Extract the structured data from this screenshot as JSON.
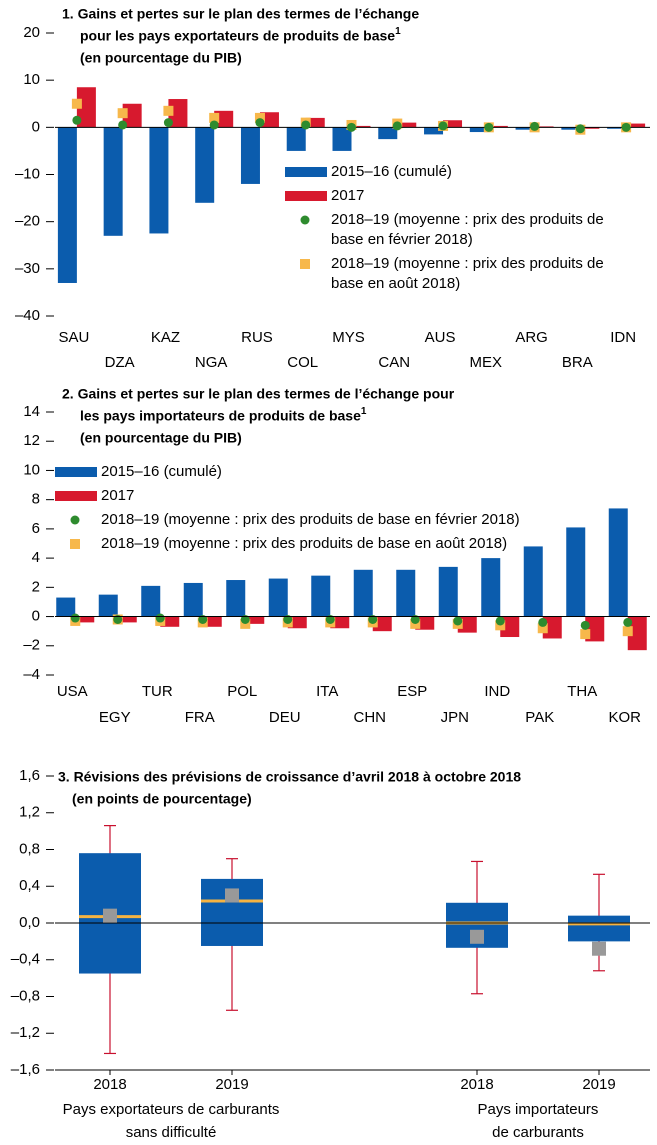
{
  "chart_data": [
    {
      "type": "bar",
      "title": [
        "1. Gains et pertes sur le plan des termes de l’échange",
        "pour les pays exportateurs de produits de base",
        "(en pourcentage du PIB)"
      ],
      "footnote_mark": "1",
      "categories": [
        "SAU",
        "DZA",
        "KAZ",
        "NGA",
        "RUS",
        "COL",
        "MYS",
        "CAN",
        "AUS",
        "MEX",
        "ARG",
        "BRA",
        "IDN"
      ],
      "series": [
        {
          "name": "2015–16 (cumulé)",
          "color": "#0b5cad",
          "marker": "bar",
          "values": [
            -33,
            -23,
            -22.5,
            -16,
            -12,
            -5,
            -5,
            -2.5,
            -1.5,
            -1,
            -0.5,
            -0.5,
            -0.3
          ]
        },
        {
          "name": "2017",
          "color": "#d7192e",
          "marker": "bar",
          "values": [
            8.5,
            5,
            6,
            3.5,
            3.2,
            2,
            0.3,
            1,
            1.5,
            0.3,
            0.2,
            -0.3,
            0.8
          ]
        },
        {
          "name": "2018–19 (moyenne : prix des produits de base en février 2018)",
          "color": "#2e8b2e",
          "marker": "dot",
          "values": [
            1.5,
            0.5,
            1,
            0.5,
            1,
            0.5,
            0,
            0.3,
            0.3,
            0,
            0.2,
            -0.3,
            0
          ]
        },
        {
          "name": "2018–19 (moyenne : prix des produits de base en août 2018)",
          "color": "#f7b84b",
          "marker": "square",
          "values": [
            5,
            3,
            3.5,
            2,
            2,
            1,
            0.5,
            0.8,
            0.3,
            0,
            0,
            -0.5,
            0
          ]
        }
      ],
      "ylim": [
        -40,
        20
      ],
      "yticks": [
        {
          "value": -40,
          "label": "–40"
        },
        {
          "value": -30,
          "label": "–30"
        },
        {
          "value": -20,
          "label": "–20"
        },
        {
          "value": -10,
          "label": "–10"
        },
        0,
        10,
        20
      ]
    },
    {
      "type": "bar",
      "title": [
        "2. Gains et pertes sur le plan des termes de l’échange pour",
        "les pays importateurs de produits de base",
        "(en pourcentage du PIB)"
      ],
      "footnote_mark": "1",
      "categories": [
        "USA",
        "EGY",
        "TUR",
        "FRA",
        "POL",
        "DEU",
        "ITA",
        "CHN",
        "ESP",
        "JPN",
        "IND",
        "PAK",
        "THA",
        "KOR"
      ],
      "series": [
        {
          "name": "2015–16 (cumulé)",
          "color": "#0b5cad",
          "marker": "bar",
          "values": [
            1.3,
            1.5,
            2.1,
            2.3,
            2.5,
            2.6,
            2.8,
            3.2,
            3.2,
            3.4,
            4.0,
            4.8,
            6.1,
            7.4
          ]
        },
        {
          "name": "2017",
          "color": "#d7192e",
          "marker": "bar",
          "values": [
            -0.4,
            -0.4,
            -0.7,
            -0.7,
            -0.5,
            -0.8,
            -0.8,
            -1.0,
            -0.9,
            -1.1,
            -1.4,
            -1.5,
            -1.7,
            -2.3
          ]
        },
        {
          "name": "2018–19 (moyenne : prix des produits de base en février 2018)",
          "color": "#2e8b2e",
          "marker": "dot",
          "values": [
            -0.1,
            -0.2,
            -0.1,
            -0.2,
            -0.2,
            -0.2,
            -0.2,
            -0.2,
            -0.2,
            -0.3,
            -0.3,
            -0.4,
            -0.6,
            -0.4
          ]
        },
        {
          "name": "2018–19 (moyenne : prix des produits de base en août 2018)",
          "color": "#f7b84b",
          "marker": "square",
          "values": [
            -0.3,
            -0.2,
            -0.3,
            -0.4,
            -0.5,
            -0.4,
            -0.4,
            -0.4,
            -0.5,
            -0.5,
            -0.6,
            -0.8,
            -1.2,
            -1.0
          ]
        }
      ],
      "ylim": [
        -4,
        14
      ],
      "yticks": [
        {
          "value": -4,
          "label": "–4"
        },
        {
          "value": -2,
          "label": "–2"
        },
        0,
        2,
        4,
        6,
        8,
        10,
        12,
        14
      ]
    },
    {
      "type": "box",
      "title": [
        "3. Révisions des prévisions de croissance d’avril 2018 à octobre 2018",
        "(en points de pourcentage)"
      ],
      "categories": [
        "2018",
        "2019",
        "2018",
        "2019"
      ],
      "group_labels": [
        [
          "Pays exportateurs de carburants",
          "sans difficulté"
        ],
        [
          "Pays importateurs",
          "de carburants"
        ]
      ],
      "low": [
        -1.42,
        -0.95,
        -0.77,
        -0.52
      ],
      "q1": [
        -0.55,
        -0.25,
        -0.27,
        -0.2
      ],
      "median": [
        0.07,
        0.24,
        0.0,
        -0.01
      ],
      "q3": [
        0.76,
        0.48,
        0.22,
        0.08
      ],
      "high": [
        1.06,
        0.7,
        0.67,
        0.53
      ],
      "mean": [
        0.08,
        0.3,
        -0.15,
        -0.28
      ],
      "colors": {
        "box": "#0b5cad",
        "median": "#f5b342",
        "whisker": "#c8102e",
        "mean": "#999999"
      },
      "ylim": [
        -1.6,
        1.6
      ],
      "yticks": [
        {
          "value": -1.6,
          "label": "–1,6"
        },
        {
          "value": -1.2,
          "label": "–1,2"
        },
        {
          "value": -0.8,
          "label": "–0,8"
        },
        {
          "value": -0.4,
          "label": "–0,4"
        },
        {
          "value": 0,
          "label": "0,0"
        },
        {
          "value": 0.4,
          "label": "0,4"
        },
        {
          "value": 0.8,
          "label": "0,8"
        },
        {
          "value": 1.2,
          "label": "1,2"
        },
        {
          "value": 1.6,
          "label": "1,6"
        }
      ]
    }
  ]
}
